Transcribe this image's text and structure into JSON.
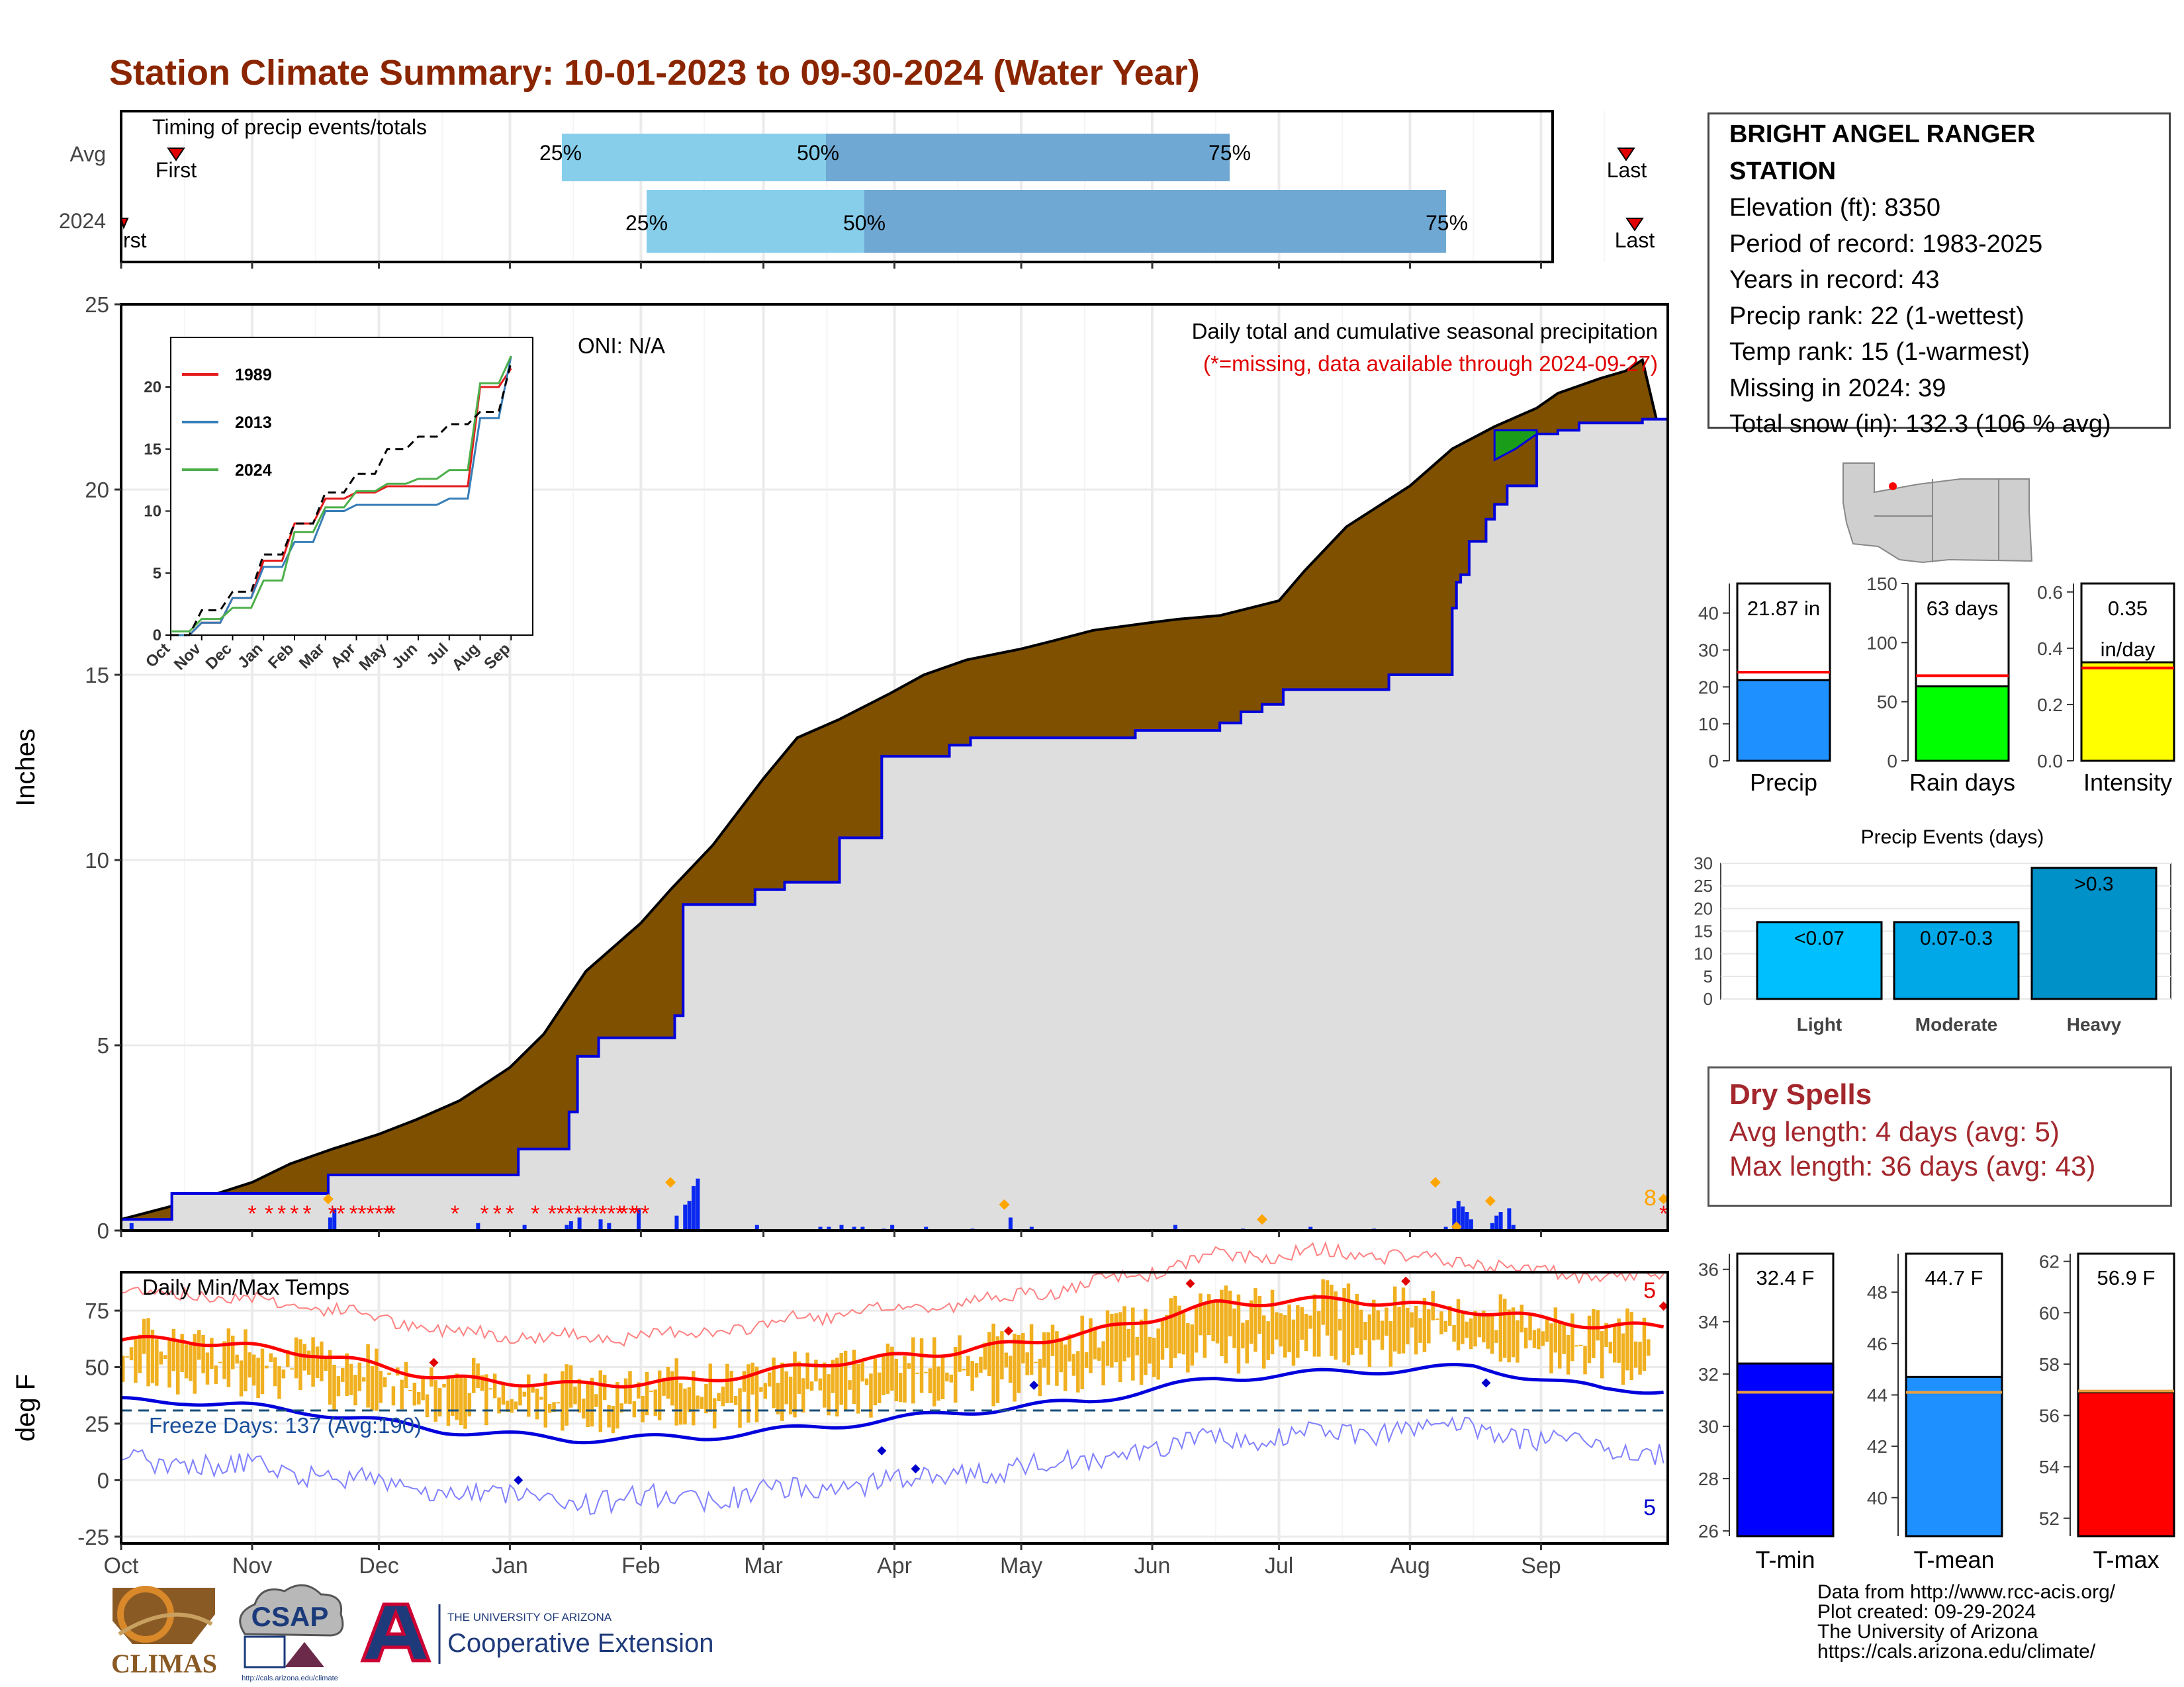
{
  "title": "Station Climate Summary: 10-01-2023 to 09-30-2024 (Water Year)",
  "month_labels": [
    "Oct",
    "Nov",
    "Dec",
    "Jan",
    "Feb",
    "Mar",
    "Apr",
    "May",
    "Jun",
    "Jul",
    "Aug",
    "Sep"
  ],
  "timing_panel": {
    "title": "Timing of precip events/totals",
    "rows": [
      "Avg",
      "2024"
    ],
    "first_label": "First",
    "first_label_2024": "rst",
    "last_label": "Last",
    "pct_labels": [
      "25%",
      "50%",
      "75%"
    ]
  },
  "precip_panel": {
    "ylabel": "Inches",
    "oni": "ONI: N/A",
    "note1": "Daily total and cumulative seasonal precipitation",
    "note2": "(*=missing, data available through 2024-09-27)",
    "snow_count": "8"
  },
  "inset": {
    "x_labels": [
      "Oct",
      "Nov",
      "Dec",
      "Jan",
      "Feb",
      "Mar",
      "Apr",
      "May",
      "Jun",
      "Jul",
      "Aug",
      "Sep"
    ],
    "y_ticks": [
      "0",
      "5",
      "10",
      "15",
      "20"
    ],
    "legend": [
      {
        "name": "1989",
        "color": "#e41a1c"
      },
      {
        "name": "2013",
        "color": "#377eb8"
      },
      {
        "name": "2024",
        "color": "#4daf4a"
      }
    ]
  },
  "station_info": {
    "station": "BRIGHT ANGEL RANGER STATION",
    "elevation": "Elevation (ft): 8350",
    "period": "Period of record: 1983-2025",
    "years": "Years in record: 43",
    "precip_rank": "Precip rank: 22 (1-wettest)",
    "temp_rank": "Temp rank: 15 (1-warmest)",
    "missing": "Missing in 2024: 39",
    "snow": "Total snow (in): 132.3 (106 % avg)"
  },
  "summary_bars": [
    {
      "label": "Precip",
      "value": 21.87,
      "avg": 24,
      "text": "21.87 in",
      "color": "#1e90ff",
      "ymax": 48,
      "ticks": [
        "0",
        "10",
        "20",
        "30",
        "40"
      ]
    },
    {
      "label": "Rain days",
      "value": 63,
      "avg": 72,
      "text": "63 days",
      "color": "#00ff00",
      "ymax": 150,
      "ticks": [
        "0",
        "50",
        "100",
        "150"
      ]
    },
    {
      "label": "Intensity",
      "value": 0.35,
      "avg": 0.33,
      "text": "0.35",
      "text2": "in/day",
      "color": "#ffff00",
      "ymax": 0.63,
      "ticks": [
        "0.0",
        "0.2",
        "0.4",
        "0.6"
      ]
    }
  ],
  "precip_events": {
    "title": "Precip Events (days)",
    "y_ticks": [
      "0",
      "5",
      "10",
      "15",
      "20",
      "25",
      "30"
    ],
    "bars": [
      {
        "label": "Light",
        "value": 17,
        "text": "<0.07",
        "color": "#00bfff"
      },
      {
        "label": "Moderate",
        "value": 17,
        "text": "0.07-0.3",
        "color": "#00a8e8"
      },
      {
        "label": "Heavy",
        "value": 29,
        "text": ">0.3",
        "color": "#0091c8"
      }
    ]
  },
  "dry_spells": {
    "title": "Dry Spells",
    "avg": "Avg length: 4 days (avg: 5)",
    "max": "Max length: 36 days (avg: 43)"
  },
  "temp_panel": {
    "ylabel": "deg F",
    "title": "Daily Min/Max Temps",
    "freeze": "Freeze Days: 137 (Avg:190)",
    "record_high_count": "5",
    "record_low_count": "5",
    "y_ticks": [
      "-25",
      "0",
      "25",
      "50",
      "75"
    ]
  },
  "temp_bars": [
    {
      "label": "T-min",
      "value": 32.4,
      "avg": 31.3,
      "text": "32.4 F",
      "color": "#0000ff",
      "ymin": 25.8,
      "ymax": 36.6,
      "ticks": [
        "26",
        "28",
        "30",
        "32",
        "34",
        "36"
      ]
    },
    {
      "label": "T-mean",
      "value": 44.7,
      "avg": 44.1,
      "text": "44.7 F",
      "color": "#1e90ff",
      "ymin": 38.5,
      "ymax": 49.5,
      "ticks": [
        "40",
        "42",
        "44",
        "46",
        "48"
      ]
    },
    {
      "label": "T-max",
      "value": 56.9,
      "avg": 56.95,
      "text": "56.9 F",
      "color": "#ff0000",
      "ymin": 51.3,
      "ymax": 62.3,
      "ticks": [
        "52",
        "54",
        "56",
        "58",
        "60",
        "62"
      ]
    }
  ],
  "logos": {
    "climas": "CLIMAS",
    "csap": "CSAP",
    "csap_url": "http://cals.arizona.edu/climate",
    "ua_small": "THE UNIVERSITY OF ARIZONA",
    "ua_big": "Cooperative Extension"
  },
  "credits": [
    "Data from http://www.rcc-acis.org/",
    "Plot created: 09-29-2024",
    "The University of Arizona",
    "https://cals.arizona.edu/climate/"
  ],
  "chart_data": [
    {
      "type": "area",
      "title": "Daily total and cumulative seasonal precipitation",
      "ylabel": "Inches",
      "ylim": [
        0,
        25
      ],
      "xlabel": "",
      "series": [
        {
          "name": "",
          "x": [
            0,
            10,
            20,
            31,
            40,
            50,
            61,
            70,
            80,
            92,
            100,
            110,
            123,
            130,
            140,
            152,
            160,
            170,
            182,
            190,
            200,
            213,
            220,
            230,
            243,
            250,
            260,
            274,
            280,
            290,
            305,
            315,
            325,
            335,
            340,
            345,
            350,
            356,
            360,
            366
          ],
          "values": [
            0.3,
            0.6,
            0.9,
            1.3,
            1.8,
            2.2,
            2.6,
            3.0,
            3.5,
            4.4,
            5.3,
            7.0,
            8.3,
            9.2,
            10.4,
            12.2,
            13.3,
            13.8,
            14.5,
            15.0,
            15.4,
            15.7,
            15.9,
            16.2,
            16.4,
            16.5,
            16.6,
            17.0,
            17.8,
            19.0,
            20.1,
            21.1,
            21.7,
            22.2,
            22.6,
            22.8,
            23.0,
            23.2,
            23.5,
            20.6
          ]
        },
        {
          "name": "",
          "x": [
            0,
            8,
            12,
            45,
            49,
            84,
            94,
            105,
            106,
            108,
            113,
            118,
            131,
            133,
            150,
            157,
            170,
            180,
            196,
            201,
            240,
            260,
            265,
            270,
            275,
            296,
            300,
            315,
            316,
            317,
            319,
            323,
            325,
            328,
            335,
            340,
            345,
            360,
            363,
            366
          ],
          "values": [
            0.3,
            0.3,
            1.0,
            1.0,
            1.5,
            1.5,
            2.2,
            2.2,
            3.2,
            4.7,
            5.2,
            5.2,
            5.8,
            8.8,
            9.2,
            9.4,
            10.6,
            12.8,
            13.1,
            13.3,
            13.5,
            13.7,
            14.0,
            14.2,
            14.6,
            14.6,
            15.0,
            16.8,
            17.5,
            17.7,
            18.6,
            19.2,
            19.6,
            20.1,
            21.5,
            21.6,
            21.8,
            21.9,
            21.9,
            20.6
          ]
        }
      ]
    },
    {
      "type": "line",
      "title": "",
      "x": [
        "Oct",
        "Nov",
        "Dec",
        "Jan",
        "Feb",
        "Mar",
        "Apr",
        "May",
        "Jun",
        "Jul",
        "Aug",
        "Sep"
      ],
      "ylim": [
        0,
        24
      ],
      "series": [
        {
          "name": "1989",
          "values": [
            0,
            1,
            3,
            6,
            9,
            11,
            11.5,
            12,
            12,
            12,
            20,
            21.5
          ]
        },
        {
          "name": "2013",
          "values": [
            0,
            1,
            3,
            5.5,
            7.5,
            10,
            10.5,
            10.5,
            10.5,
            11,
            17.5,
            22.5
          ]
        },
        {
          "name": "2024",
          "values": [
            0.3,
            1.3,
            2.2,
            4.4,
            8.3,
            10.3,
            11.6,
            12.2,
            12.6,
            13.3,
            20.3,
            22.5
          ]
        },
        {
          "name": "",
          "values": [
            0,
            2,
            3.5,
            6.5,
            9,
            11.5,
            13,
            15,
            16,
            17,
            18,
            22
          ]
        }
      ]
    },
    {
      "type": "line",
      "title": "Daily Min/Max Temps",
      "ylabel": "deg F",
      "ylim": [
        -28,
        92
      ],
      "x": [
        "Oct",
        "Nov",
        "Dec",
        "Jan",
        "Feb",
        "Mar",
        "Apr",
        "May",
        "Jun",
        "Jul",
        "Aug",
        "Sep"
      ],
      "series": [
        {
          "name": "",
          "values": [
            62,
            56,
            45,
            42,
            44,
            52,
            57,
            65,
            78,
            80,
            75,
            68
          ]
        },
        {
          "name": "",
          "values": [
            35,
            30,
            22,
            18,
            19,
            24,
            30,
            35,
            45,
            48,
            50,
            40
          ]
        }
      ],
      "freeze_line": 32
    }
  ]
}
